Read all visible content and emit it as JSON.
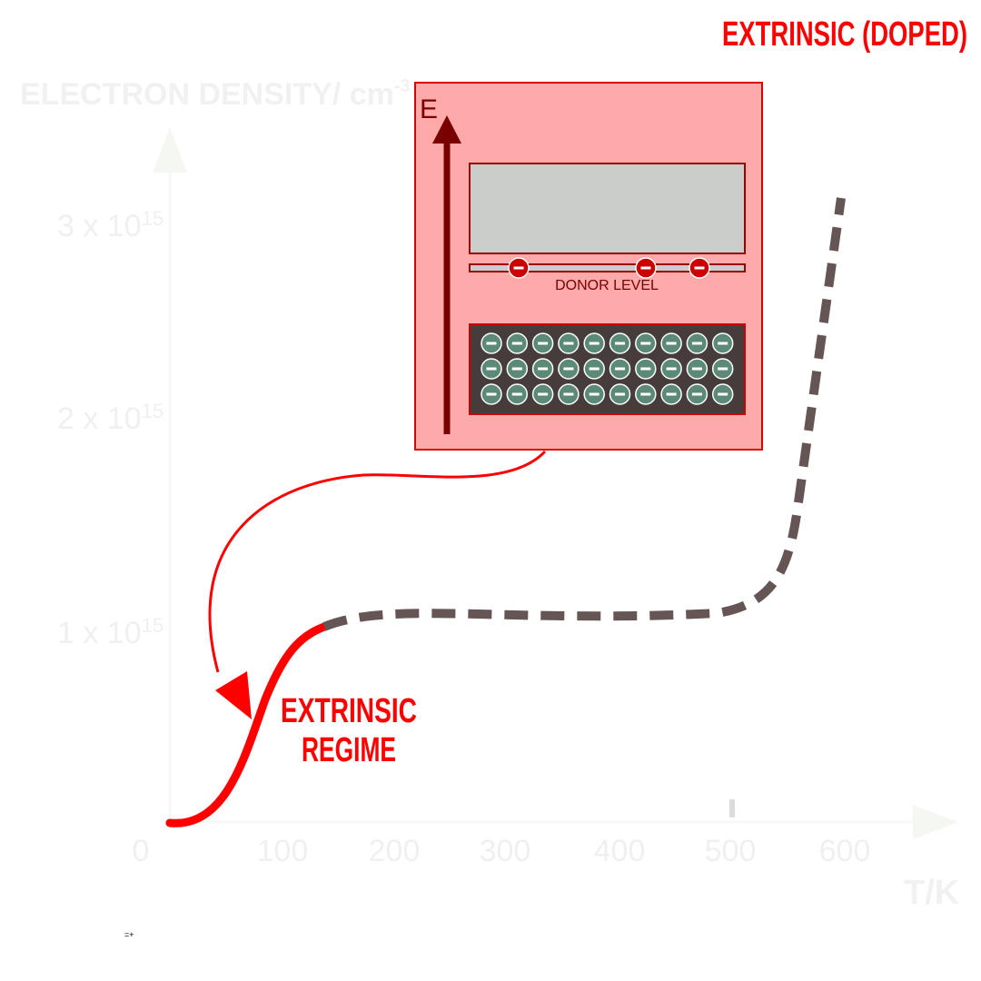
{
  "title": "EXTRINSIC (DOPED)",
  "y_axis": {
    "label_main": "ELECTRON DENSITY/ cm",
    "label_sup": "-3",
    "ticks": [
      {
        "base": "1 x 10",
        "exp": "15"
      },
      {
        "base": "2 x 10",
        "exp": "15"
      },
      {
        "base": "3 x 10",
        "exp": "15"
      }
    ]
  },
  "x_axis": {
    "label": "T/K",
    "ticks": [
      "0",
      "100",
      "200",
      "300",
      "400",
      "500",
      "600"
    ]
  },
  "inset": {
    "energy_label": "E",
    "donor_label": "DONOR LEVEL",
    "donor_electrons": 3,
    "valence_rows": 3,
    "valence_cols": 10,
    "electron_symbol": "−"
  },
  "regime_label": {
    "line1": "EXTRINSIC",
    "line2": "REGIME"
  },
  "footnote": "=+",
  "colors": {
    "accent": "#ff0000",
    "inset_bg": "#ffaaaa",
    "band_gray": "#cccccc",
    "valence_band": "#473c3c",
    "electron_fill": "#5c8a78",
    "dashed_curve": "#665555",
    "arrow_dark": "#7a0000"
  }
}
